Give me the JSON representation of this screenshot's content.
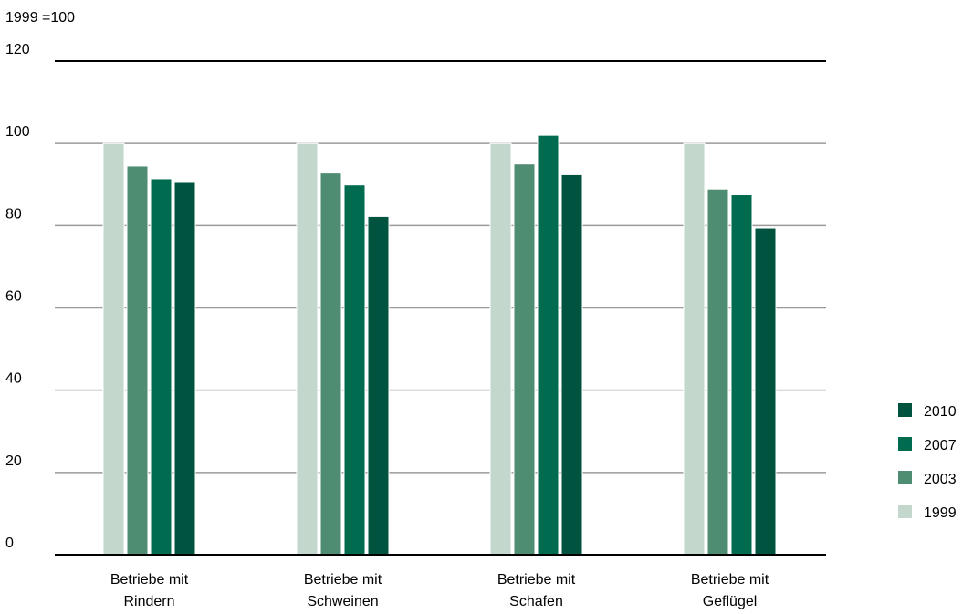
{
  "chart_data": {
    "type": "bar",
    "ylabel": "1999 =100",
    "ylim": [
      0,
      120
    ],
    "yticks": [
      0,
      20,
      40,
      60,
      80,
      100,
      120
    ],
    "grid": true,
    "legend_position": "right-bottom",
    "categories": [
      [
        "Betriebe mit",
        "Rindern"
      ],
      [
        "Betriebe mit",
        "Schweinen"
      ],
      [
        "Betriebe mit",
        "Schafen"
      ],
      [
        "Betriebe mit",
        "Geflügel"
      ]
    ],
    "series": [
      {
        "name": "1999",
        "color": "#c3d7cc",
        "values": [
          100,
          100,
          100,
          100
        ]
      },
      {
        "name": "2003",
        "color": "#4f8d73",
        "values": [
          94.5,
          92.8,
          95.0,
          88.9
        ]
      },
      {
        "name": "2007",
        "color": "#006b4f",
        "values": [
          91.4,
          89.9,
          102.0,
          87.5
        ]
      },
      {
        "name": "2010",
        "color": "#00533f",
        "values": [
          90.5,
          82.2,
          92.4,
          79.4
        ]
      }
    ],
    "legend_order": [
      "2010",
      "2007",
      "2003",
      "1999"
    ]
  }
}
